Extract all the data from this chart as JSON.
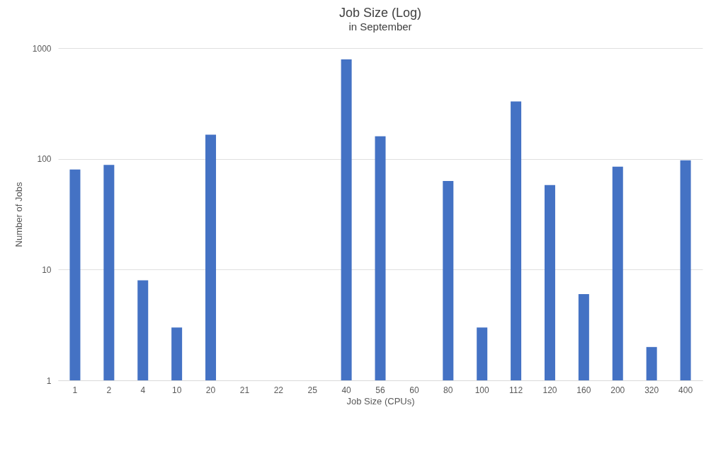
{
  "chart_data": {
    "type": "bar",
    "title": "Job Size (Log)",
    "subtitle": "in September",
    "xlabel": "Job Size (CPUs)",
    "ylabel": "Number of Jobs",
    "categories": [
      "1",
      "2",
      "4",
      "10",
      "20",
      "21",
      "22",
      "25",
      "40",
      "56",
      "60",
      "80",
      "100",
      "112",
      "120",
      "160",
      "200",
      "320",
      "400"
    ],
    "values": [
      80,
      88,
      8,
      3,
      165,
      null,
      null,
      null,
      790,
      160,
      null,
      63,
      3,
      330,
      58,
      6,
      85,
      2,
      97
    ],
    "color": "#4472c4",
    "log": true,
    "ylim": [
      1,
      1000
    ],
    "yticks": [
      1,
      10,
      100,
      1000
    ],
    "grid": "y"
  }
}
